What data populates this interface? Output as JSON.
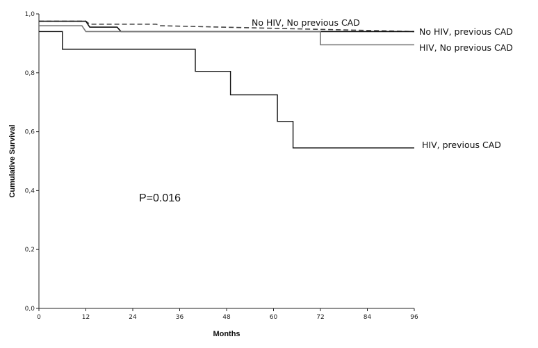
{
  "chart_data": {
    "type": "line",
    "title": "",
    "xlabel": "Months",
    "ylabel": "Cumulative Survival",
    "xlim": [
      0,
      96
    ],
    "ylim": [
      0.0,
      1.0
    ],
    "x_ticks": [
      0,
      12,
      24,
      36,
      48,
      60,
      72,
      84,
      96
    ],
    "y_ticks": [
      "0,0",
      "0,2",
      "0,4",
      "0,6",
      "0,8",
      "1,0"
    ],
    "y_tick_values": [
      0.0,
      0.2,
      0.4,
      0.6,
      0.8,
      1.0
    ],
    "grid": false,
    "annotation": "P=0.016",
    "series": [
      {
        "name": "No HIV, No previous CAD",
        "style": "dashed",
        "color": "#444444",
        "steps": [
          [
            0,
            0.975
          ],
          [
            12,
            0.975
          ],
          [
            13,
            0.965
          ],
          [
            30,
            0.965
          ],
          [
            31,
            0.96
          ],
          [
            96,
            0.94
          ]
        ]
      },
      {
        "name": "No HIV, previous CAD",
        "style": "solid",
        "color": "#111111",
        "steps": [
          [
            0,
            0.975
          ],
          [
            12,
            0.975
          ],
          [
            13,
            0.955
          ],
          [
            20,
            0.955
          ],
          [
            21,
            0.94
          ],
          [
            96,
            0.94
          ]
        ]
      },
      {
        "name": "HIV, No previous CAD",
        "style": "solid",
        "color": "#777777",
        "steps": [
          [
            0,
            0.96
          ],
          [
            11,
            0.96
          ],
          [
            12,
            0.94
          ],
          [
            72,
            0.94
          ],
          [
            72,
            0.895
          ],
          [
            96,
            0.895
          ]
        ]
      },
      {
        "name": "HIV, previous CAD",
        "style": "solid",
        "color": "#111111",
        "steps": [
          [
            0,
            0.94
          ],
          [
            6,
            0.94
          ],
          [
            6,
            0.88
          ],
          [
            40,
            0.88
          ],
          [
            40,
            0.805
          ],
          [
            49,
            0.805
          ],
          [
            49,
            0.725
          ],
          [
            61,
            0.725
          ],
          [
            61,
            0.635
          ],
          [
            65,
            0.635
          ],
          [
            65,
            0.545
          ],
          [
            96,
            0.545
          ]
        ]
      }
    ]
  }
}
